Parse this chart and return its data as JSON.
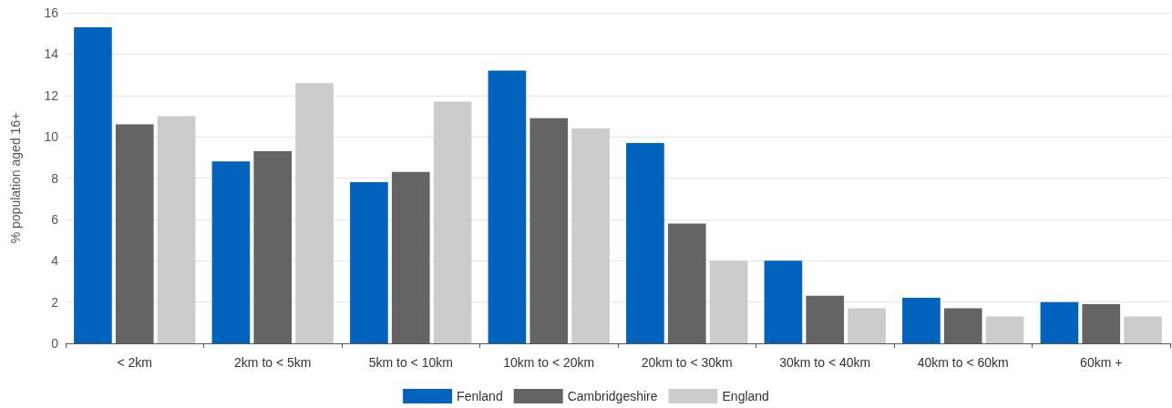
{
  "chart_data": {
    "type": "bar",
    "ylabel": "% population aged 16+",
    "categories": [
      "< 2km",
      "2km to < 5km",
      "5km to < 10km",
      "10km to < 20km",
      "20km to < 30km",
      "30km to < 40km",
      "40km to < 60km",
      "60km +"
    ],
    "series": [
      {
        "name": "Fenland",
        "color": "#0063be",
        "values": [
          15.3,
          8.8,
          7.8,
          13.2,
          9.7,
          4.0,
          2.2,
          2.0
        ]
      },
      {
        "name": "Cambridgeshire",
        "color": "#646464",
        "values": [
          10.6,
          9.3,
          8.3,
          10.9,
          5.8,
          2.3,
          1.7,
          1.9
        ]
      },
      {
        "name": "England",
        "color": "#cccccc",
        "values": [
          11.0,
          12.6,
          11.7,
          10.4,
          4.0,
          1.7,
          1.3,
          1.3
        ]
      }
    ],
    "ylim": [
      0,
      16
    ],
    "yticks": [
      0,
      2,
      4,
      6,
      8,
      10,
      12,
      14,
      16
    ],
    "grid": "y",
    "legend": "bottom"
  }
}
